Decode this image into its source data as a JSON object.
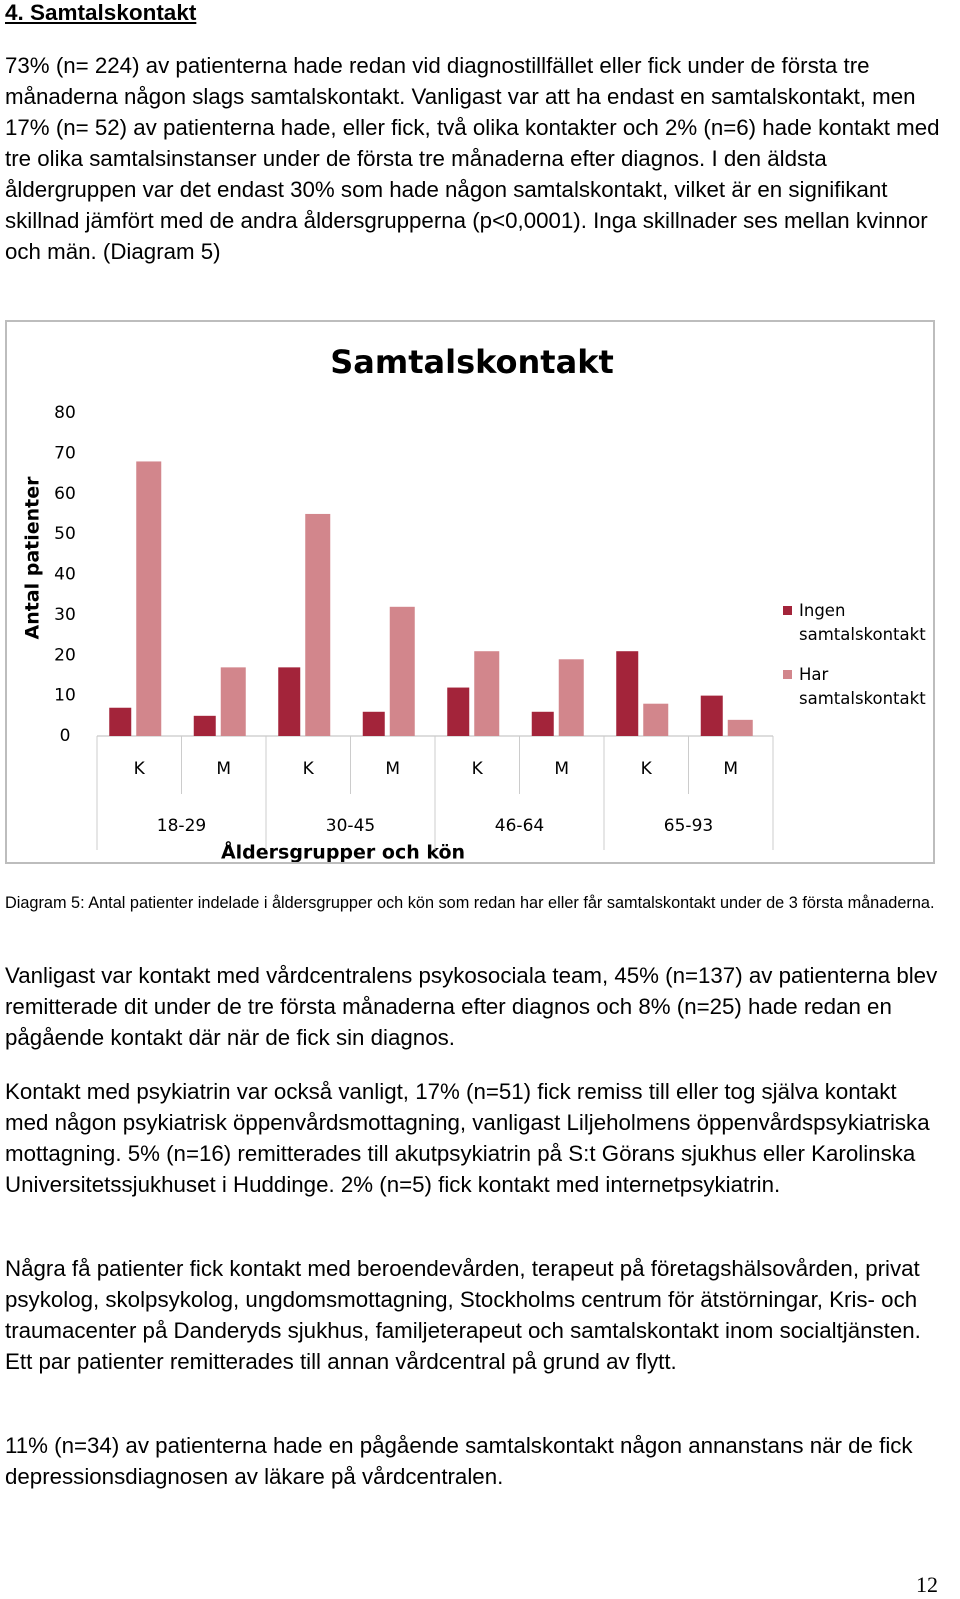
{
  "heading": "4. Samtalskontakt",
  "intro": "73% (n= 224) av patienterna hade redan vid diagnostillfället eller fick under de första tre månaderna någon slags samtalskontakt. Vanligast var att ha endast en samtalskontakt, men 17% (n= 52) av patienterna hade, eller fick, två olika kontakter och 2% (n=6) hade kontakt med tre olika samtalsinstanser under de första tre månaderna efter diagnos. I den äldsta åldergruppen var det endast 30% som hade någon samtalskontakt, vilket är en signifikant skillnad jämfört med de andra åldersgrupperna (p<0,0001). Inga skillnader ses mellan kvinnor och män. (Diagram 5)",
  "chart_data": {
    "type": "bar",
    "title": "Samtalskontakt",
    "y_label": "Antal patienter",
    "x_label": "Åldersgrupper och kön",
    "categories": [
      "K",
      "M",
      "K",
      "M",
      "K",
      "M",
      "K",
      "M"
    ],
    "groups": [
      "18-29",
      "30-45",
      "46-64",
      "65-93"
    ],
    "series": [
      {
        "name": "Ingen samtalskontakt",
        "color": "#a3243a",
        "values": [
          7,
          5,
          17,
          6,
          12,
          6,
          21,
          10
        ]
      },
      {
        "name": "Har samtalskontakt",
        "color": "#d2868c",
        "values": [
          68,
          17,
          55,
          32,
          21,
          19,
          8,
          4
        ]
      }
    ],
    "ylim": [
      0,
      80
    ],
    "yticks": [
      0,
      10,
      20,
      30,
      40,
      50,
      60,
      70,
      80
    ]
  },
  "caption": "Diagram 5: Antal patienter indelade i åldersgrupper och kön som redan har eller får samtalskontakt under de 3 första månaderna.",
  "paragraphs": [
    "Vanligast var kontakt med vårdcentralens psykosociala team, 45% (n=137) av patienterna blev remitterade dit under de tre första månaderna efter diagnos och 8% (n=25) hade redan en pågående kontakt där när de fick sin diagnos.",
    "Kontakt med psykiatrin var också vanligt, 17% (n=51) fick remiss till eller tog själva kontakt med någon psykiatrisk öppenvårdsmottagning, vanligast Liljeholmens öppenvårdspsykiatriska mottagning. 5% (n=16) remitterades till akutpsykiatrin på S:t Görans sjukhus eller Karolinska Universitetssjukhuset i Huddinge. 2% (n=5) fick kontakt med internetpsykiatrin.",
    "Några få patienter fick kontakt med beroendevården, terapeut på företagshälsovården, privat psykolog, skolpsykolog, ungdomsmottagning, Stockholms centrum för ätstörningar, Kris- och traumacenter på Danderyds sjukhus, familjeterapeut och samtalskontakt inom socialtjänsten. Ett par patienter remitterades till annan vårdcentral på grund av flytt.",
    "11% (n=34) av patienterna hade en pågående samtalskontakt någon annanstans när de fick depressionsdiagnosen av läkare på vårdcentralen."
  ],
  "page_number": "12"
}
